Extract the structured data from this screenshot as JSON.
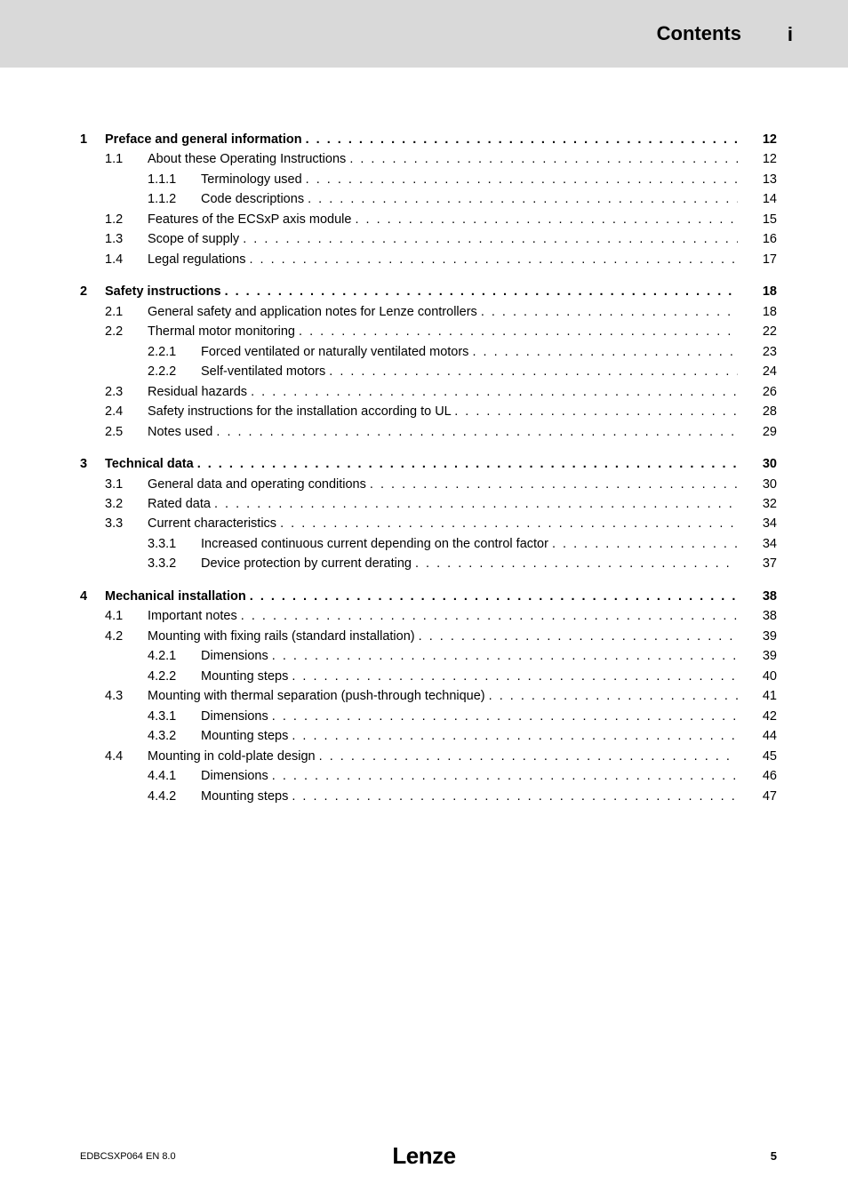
{
  "header": {
    "title": "Contents",
    "marker": "i"
  },
  "toc": [
    {
      "type": "chapter",
      "num": "1",
      "title": "Preface and general information",
      "page": "12"
    },
    {
      "type": "section",
      "num": "1.1",
      "title": "About these Operating Instructions",
      "page": "12"
    },
    {
      "type": "sub",
      "num": "1.1.1",
      "title": "Terminology used",
      "page": "13"
    },
    {
      "type": "sub",
      "num": "1.1.2",
      "title": "Code descriptions",
      "page": "14"
    },
    {
      "type": "section",
      "num": "1.2",
      "title": "Features of the ECSxP axis module",
      "page": "15"
    },
    {
      "type": "section",
      "num": "1.3",
      "title": "Scope of supply",
      "page": "16"
    },
    {
      "type": "section",
      "num": "1.4",
      "title": "Legal regulations",
      "page": "17"
    },
    {
      "type": "chapter",
      "num": "2",
      "title": "Safety instructions",
      "page": "18"
    },
    {
      "type": "section",
      "num": "2.1",
      "title": "General safety and application notes for Lenze controllers",
      "page": "18"
    },
    {
      "type": "section",
      "num": "2.2",
      "title": "Thermal motor monitoring",
      "page": "22"
    },
    {
      "type": "sub",
      "num": "2.2.1",
      "title": "Forced ventilated or naturally ventilated motors",
      "page": "23"
    },
    {
      "type": "sub",
      "num": "2.2.2",
      "title": "Self-ventilated motors",
      "page": "24"
    },
    {
      "type": "section",
      "num": "2.3",
      "title": "Residual hazards",
      "page": "26"
    },
    {
      "type": "section",
      "num": "2.4",
      "title": "Safety instructions for the installation according to UL",
      "page": "28"
    },
    {
      "type": "section",
      "num": "2.5",
      "title": "Notes used",
      "page": "29"
    },
    {
      "type": "chapter",
      "num": "3",
      "title": "Technical data",
      "page": "30"
    },
    {
      "type": "section",
      "num": "3.1",
      "title": "General data and operating conditions",
      "page": "30"
    },
    {
      "type": "section",
      "num": "3.2",
      "title": "Rated data",
      "page": "32"
    },
    {
      "type": "section",
      "num": "3.3",
      "title": "Current characteristics",
      "page": "34"
    },
    {
      "type": "sub",
      "num": "3.3.1",
      "title": "Increased continuous current depending on the control factor",
      "page": "34"
    },
    {
      "type": "sub",
      "num": "3.3.2",
      "title": "Device protection by current derating",
      "page": "37"
    },
    {
      "type": "chapter",
      "num": "4",
      "title": "Mechanical installation",
      "page": "38"
    },
    {
      "type": "section",
      "num": "4.1",
      "title": "Important notes",
      "page": "38"
    },
    {
      "type": "section",
      "num": "4.2",
      "title": "Mounting with fixing rails (standard installation)",
      "page": "39"
    },
    {
      "type": "sub",
      "num": "4.2.1",
      "title": "Dimensions",
      "page": "39"
    },
    {
      "type": "sub",
      "num": "4.2.2",
      "title": "Mounting steps",
      "page": "40"
    },
    {
      "type": "section",
      "num": "4.3",
      "title": "Mounting with thermal separation (push-through technique)",
      "page": "41"
    },
    {
      "type": "sub",
      "num": "4.3.1",
      "title": "Dimensions",
      "page": "42"
    },
    {
      "type": "sub",
      "num": "4.3.2",
      "title": "Mounting steps",
      "page": "44"
    },
    {
      "type": "section",
      "num": "4.4",
      "title": "Mounting in cold-plate design",
      "page": "45"
    },
    {
      "type": "sub",
      "num": "4.4.1",
      "title": "Dimensions",
      "page": "46"
    },
    {
      "type": "sub",
      "num": "4.4.2",
      "title": "Mounting steps",
      "page": "47"
    }
  ],
  "footer": {
    "docnum": "EDBCSXP064  EN  8.0",
    "logo": "Lenze",
    "pagenum": "5"
  }
}
